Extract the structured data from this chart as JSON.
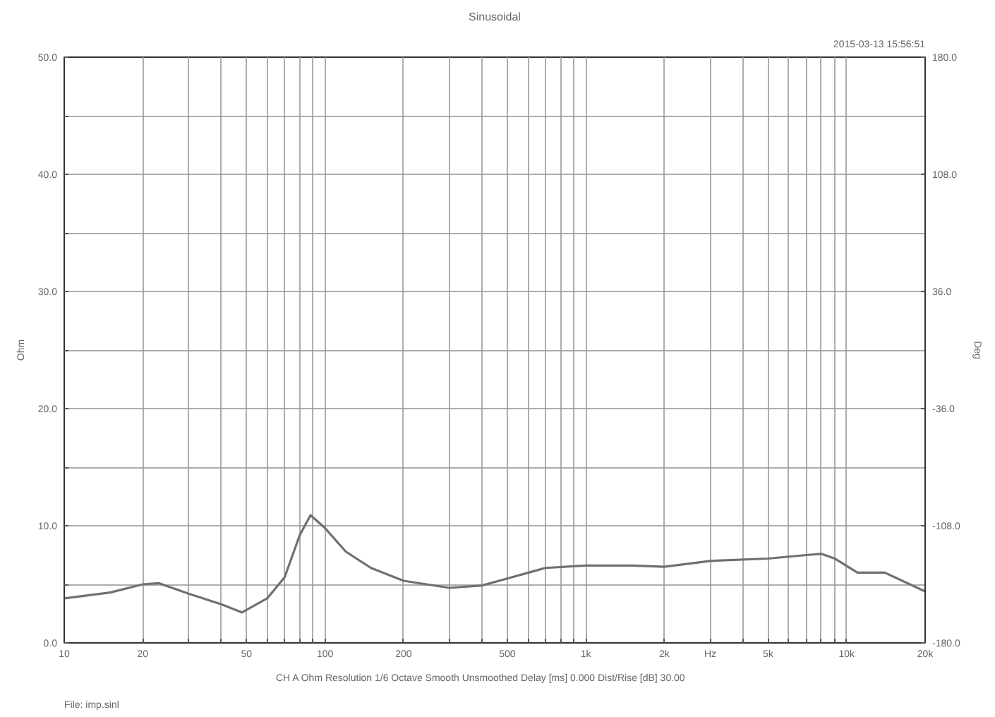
{
  "chart_data": {
    "type": "line",
    "title": "Sinusoidal",
    "ylabel": "Ohm",
    "y2label": "Deg",
    "log": "x",
    "grid": true,
    "marker": "none",
    "line_style": "solid",
    "x": [
      10,
      15,
      20,
      23,
      30,
      40,
      48,
      60,
      70,
      80,
      88,
      100,
      120,
      150,
      200,
      300,
      400,
      500,
      700,
      1000,
      1500,
      2000,
      3000,
      5000,
      7000,
      8000,
      9000,
      11000,
      14000,
      20000
    ],
    "series": [
      {
        "color": "#707070",
        "values": [
          3.8,
          4.3,
          5.0,
          5.1,
          4.2,
          3.3,
          2.6,
          3.8,
          5.6,
          9.2,
          10.9,
          9.8,
          7.8,
          6.4,
          5.3,
          4.7,
          4.9,
          5.5,
          6.4,
          6.6,
          6.6,
          6.5,
          7.0,
          7.2,
          7.5,
          7.6,
          7.2,
          6.0,
          6.0,
          4.4
        ]
      }
    ],
    "xlim": [
      10,
      20000
    ],
    "xticks": [
      10,
      20,
      {
        "value": 30,
        "label": null
      },
      {
        "value": 40,
        "label": null
      },
      50,
      {
        "value": 60,
        "label": null
      },
      {
        "value": 70,
        "label": null
      },
      {
        "value": 80,
        "label": null
      },
      {
        "value": 90,
        "label": null
      },
      100,
      200,
      {
        "value": 300,
        "label": null
      },
      {
        "value": 400,
        "label": null
      },
      500,
      {
        "value": 600,
        "label": null
      },
      {
        "value": 700,
        "label": null
      },
      {
        "value": 800,
        "label": null
      },
      {
        "value": 900,
        "label": null
      },
      {
        "value": 1000,
        "label": "1k"
      },
      {
        "value": 2000,
        "label": "2k"
      },
      {
        "value": 3000,
        "label": "Hz"
      },
      {
        "value": 4000,
        "label": null
      },
      {
        "value": 5000,
        "label": "5k"
      },
      {
        "value": 6000,
        "label": null
      },
      {
        "value": 7000,
        "label": null
      },
      {
        "value": 8000,
        "label": null
      },
      {
        "value": 9000,
        "label": null
      },
      {
        "value": 10000,
        "label": "10k"
      },
      {
        "value": 20000,
        "label": "20k"
      }
    ],
    "ylim": [
      0,
      50
    ],
    "yticks": [
      {
        "value": 0,
        "label": "0.0"
      },
      {
        "value": 5,
        "label": null
      },
      {
        "value": 10,
        "label": "10.0"
      },
      {
        "value": 15,
        "label": null
      },
      {
        "value": 20,
        "label": "20.0"
      },
      {
        "value": 25,
        "label": null
      },
      {
        "value": 30,
        "label": "30.0"
      },
      {
        "value": 35,
        "label": null
      },
      {
        "value": 40,
        "label": "40.0"
      },
      {
        "value": 45,
        "label": null
      },
      {
        "value": 50,
        "label": "50.0"
      }
    ],
    "y2lim": [
      -180,
      180
    ],
    "y2ticks": [
      {
        "value": -180,
        "label": "-180.0"
      },
      {
        "value": -108,
        "label": "-108.0"
      },
      {
        "value": -36,
        "label": "-36.0"
      },
      {
        "value": 36,
        "label": "36.0"
      },
      {
        "value": 108,
        "label": "108.0"
      },
      {
        "value": 180,
        "label": "180.0"
      }
    ],
    "annotations": [
      "2015-03-13 15:56:51",
      "CH A   Ohm   Resolution 1/6 Octave   Smooth Unsmoothed   Delay [ms] 0.000   Dist/Rise [dB] 30.00",
      "File: imp.sinl"
    ]
  }
}
